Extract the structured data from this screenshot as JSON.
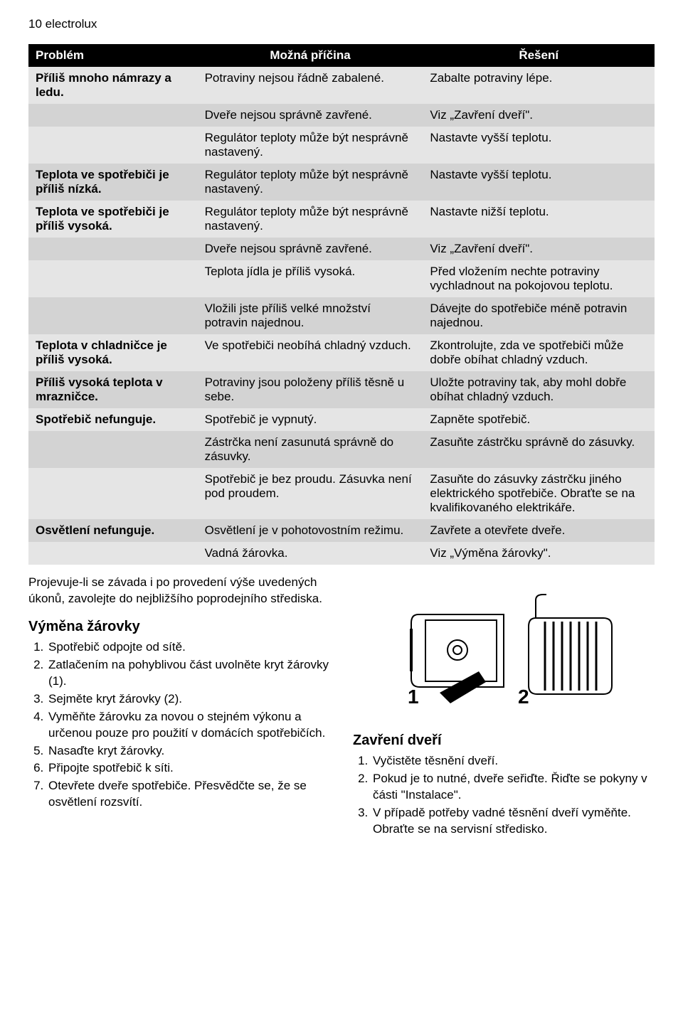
{
  "page_header": "10 electrolux",
  "table": {
    "headers": [
      "Problém",
      "Možná příčina",
      "Řešení"
    ],
    "rows": [
      {
        "problem": "Příliš mnoho námrazy a ledu.",
        "cause": "Potraviny nejsou řádně zabalené.",
        "solution": "Zabalte potraviny lépe."
      },
      {
        "problem": "",
        "cause": "Dveře nejsou správně zavřené.",
        "solution": "Viz „Zavření dveří\"."
      },
      {
        "problem": "",
        "cause": "Regulátor teploty může být nesprávně nastavený.",
        "solution": "Nastavte vyšší teplotu."
      },
      {
        "problem": "Teplota ve spotřebiči je příliš nízká.",
        "cause": "Regulátor teploty může být nesprávně nastavený.",
        "solution": "Nastavte vyšší teplotu."
      },
      {
        "problem": "Teplota ve spotřebiči je příliš vysoká.",
        "cause": "Regulátor teploty může být nesprávně nastavený.",
        "solution": "Nastavte nižší teplotu."
      },
      {
        "problem": "",
        "cause": "Dveře nejsou správně zavřené.",
        "solution": "Viz „Zavření dveří\"."
      },
      {
        "problem": "",
        "cause": "Teplota jídla je příliš vysoká.",
        "solution": "Před vložením nechte potraviny vychladnout na pokojovou teplotu."
      },
      {
        "problem": "",
        "cause": "Vložili jste příliš velké množství potravin najednou.",
        "solution": "Dávejte do spotřebiče méně potravin najednou."
      },
      {
        "problem": "Teplota v chladničce je příliš vysoká.",
        "cause": "Ve spotřebiči neobíhá chladný vzduch.",
        "solution": "Zkontrolujte, zda ve spotřebiči může dobře obíhat chladný vzduch."
      },
      {
        "problem": "Příliš vysoká teplota v mrazničce.",
        "cause": "Potraviny jsou položeny příliš těsně u sebe.",
        "solution": "Uložte potraviny tak, aby mohl dobře obíhat chladný vzduch."
      },
      {
        "problem": "Spotřebič nefunguje.",
        "cause": "Spotřebič je vypnutý.",
        "solution": "Zapněte spotřebič."
      },
      {
        "problem": "",
        "cause": "Zástrčka není zasunutá správně do zásuvky.",
        "solution": "Zasuňte zástrčku správně do zásuvky."
      },
      {
        "problem": "",
        "cause": "Spotřebič je bez proudu. Zásuvka není pod proudem.",
        "solution": "Zasuňte do zásuvky zástrčku jiného elektrického spotřebiče. Obraťte se na kvalifikovaného elektrikáře."
      },
      {
        "problem": "Osvětlení nefunguje.",
        "cause": "Osvětlení je v pohotovostním režimu.",
        "solution": "Zavřete a otevřete dveře."
      },
      {
        "problem": "",
        "cause": "Vadná žárovka.",
        "solution": "Viz „Výměna žárovky\"."
      }
    ]
  },
  "left": {
    "intro": "Projevuje-li se závada i po provedení výše uvedených úkonů, zavolejte do nejbližšího poprodejního střediska.",
    "heading": "Výměna žárovky",
    "steps": [
      "Spotřebič odpojte od sítě.",
      "Zatlačením na pohyblivou část uvolněte kryt žárovky (1).",
      "Sejměte kryt žárovky (2).",
      "Vyměňte žárovku za novou o stejném výkonu a určenou pouze pro použití v domácích spotřebičích.",
      "Nasaďte kryt žárovky.",
      "Připojte spotřebič k síti.",
      "Otevřete dveře spotřebiče. Přesvědčte se, že se osvětlení rozsvítí."
    ]
  },
  "right": {
    "diagram": {
      "label1": "1",
      "label2": "2"
    },
    "heading": "Zavření dveří",
    "steps": [
      "Vyčistěte těsnění dveří.",
      "Pokud je to nutné, dveře seřiďte. Řiďte se pokyny v části \"Instalace\".",
      "V případě potřeby vadné těsnění dveří vyměňte. Obraťte se na servisní středisko."
    ]
  }
}
